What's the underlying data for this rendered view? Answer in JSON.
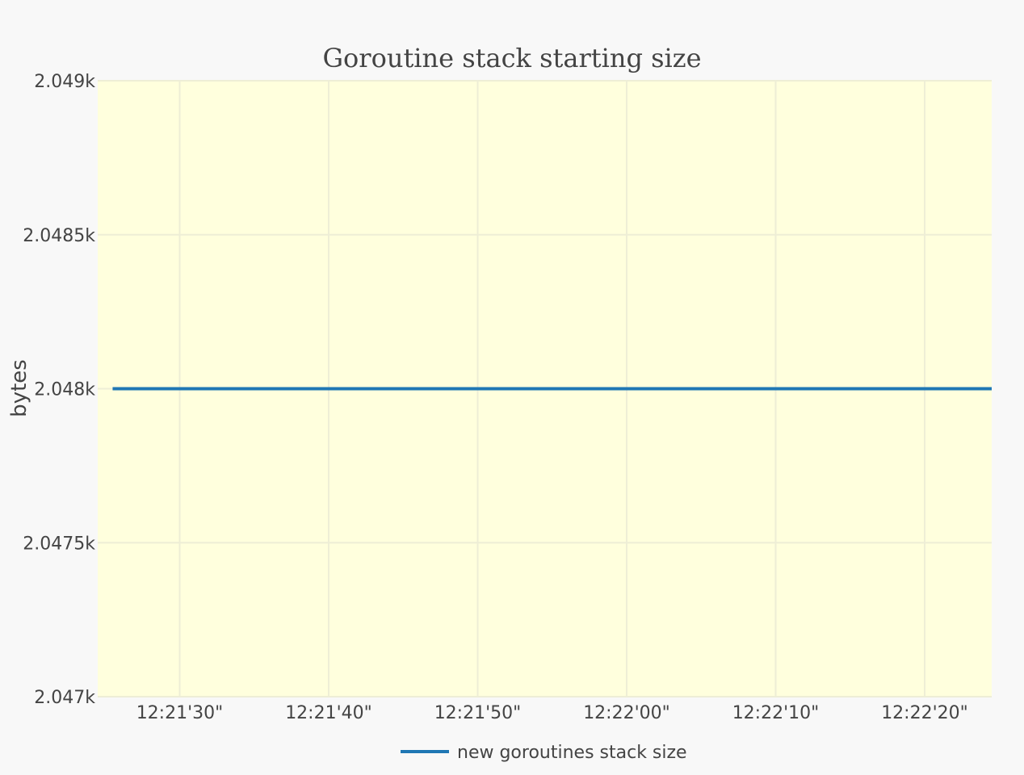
{
  "chart_data": {
    "type": "line",
    "title": "Goroutine stack starting size",
    "xlabel": "",
    "ylabel": "bytes",
    "x_tick_labels": [
      "12:21'30\"",
      "12:21'40\"",
      "12:21'50\"",
      "12:22'00\"",
      "12:22'10\"",
      "12:22'20\""
    ],
    "y_tick_labels": [
      "2.047k",
      "2.0475k",
      "2.048k",
      "2.0485k",
      "2.049k"
    ],
    "y_tick_values": [
      2047,
      2047.5,
      2048,
      2048.5,
      2049
    ],
    "ylim": [
      2047,
      2049
    ],
    "x_unit": "seconds",
    "x_tick_values": [
      30,
      40,
      50,
      60,
      70,
      80
    ],
    "xlim": [
      24.5,
      84.5
    ],
    "series": [
      {
        "name": "new goroutines stack size",
        "color": "#1f77b4",
        "x": [
          25.5,
          84.5
        ],
        "y": [
          2048,
          2048
        ]
      }
    ],
    "grid": true,
    "legend_position": "bottom-center",
    "plot_background": "#ffffdd",
    "page_background": "#f8f8f8",
    "grid_color": "#eeeed6"
  }
}
